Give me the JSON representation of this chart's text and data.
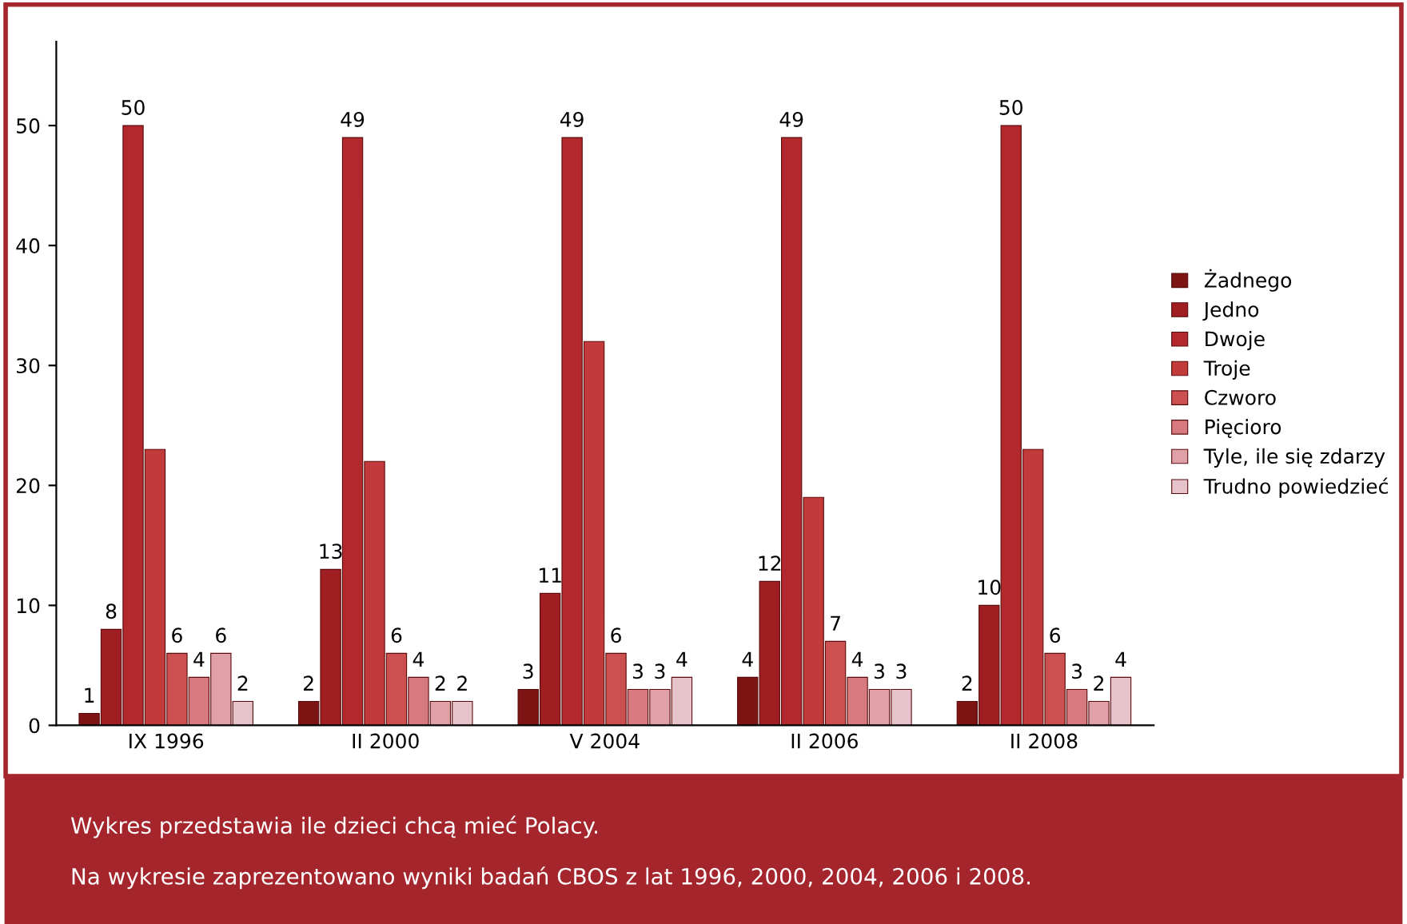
{
  "chart_data": {
    "type": "bar",
    "categories": [
      "IX 1996",
      "II 2000",
      "V 2004",
      "II 2006",
      "II 2008"
    ],
    "series": [
      {
        "name": "Żadnego",
        "color": "#7d1414",
        "values": [
          1,
          2,
          3,
          4,
          2
        ],
        "value_labels": [
          "1",
          "2",
          "3",
          "4",
          "2"
        ]
      },
      {
        "name": "Jedno",
        "color": "#9e1e22",
        "values": [
          8,
          13,
          11,
          12,
          10
        ],
        "value_labels": [
          "8",
          "13",
          "11",
          "12",
          "10"
        ]
      },
      {
        "name": "Dwoje",
        "color": "#b3282c",
        "values": [
          50,
          49,
          49,
          49,
          50
        ],
        "value_labels": [
          "50",
          "49",
          "49",
          "49",
          "50"
        ]
      },
      {
        "name": "Troje",
        "color": "#c23a3a",
        "values": [
          23,
          22,
          32,
          19,
          23
        ],
        "value_labels": [
          null,
          null,
          null,
          null,
          null
        ]
      },
      {
        "name": "Czworo",
        "color": "#cc5050",
        "values": [
          6,
          6,
          6,
          7,
          6
        ],
        "value_labels": [
          "6",
          "6",
          "6",
          "7",
          "6"
        ]
      },
      {
        "name": "Pięcioro",
        "color": "#d77a80",
        "values": [
          4,
          4,
          3,
          4,
          3
        ],
        "value_labels": [
          "4",
          "4",
          "3",
          "4",
          "3"
        ]
      },
      {
        "name": "Tyle, ile się zdarzy",
        "color": "#dfa0a8",
        "values": [
          6,
          2,
          3,
          3,
          2
        ],
        "value_labels": [
          "6",
          "2",
          "3",
          "3",
          "2"
        ]
      },
      {
        "name": "Trudno powiedzieć",
        "color": "#e6c3cb",
        "values": [
          2,
          2,
          4,
          3,
          4
        ],
        "value_labels": [
          "2",
          "2",
          "4",
          "3",
          "4"
        ]
      }
    ],
    "ylim": [
      0,
      57
    ],
    "yticks": [
      0,
      10,
      20,
      30,
      40,
      50
    ],
    "grid": false,
    "legend": "right",
    "annotations": [
      "Wykres przedstawia ile dzieci chcą mieć Polacy.",
      "Na wykresie zaprezentowano wyniki badań CBOS z lat 1996, 2000, 2004, 2006 i 2008."
    ]
  }
}
